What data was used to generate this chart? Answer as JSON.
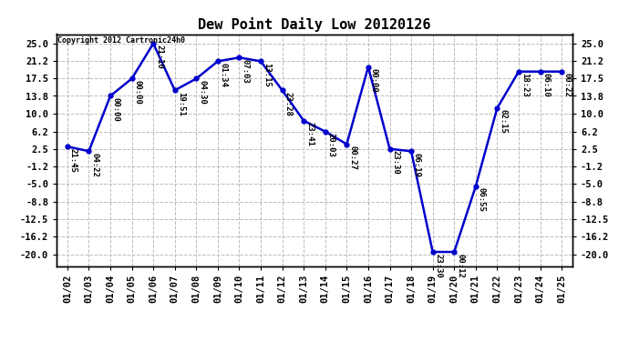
{
  "title": "Dew Point Daily Low 20120126",
  "copyright_text": "Copyright 2012 Cartronic24h0",
  "line_color": "#0000CC",
  "background_color": "#ffffff",
  "grid_color": "#bbbbbb",
  "dates": [
    "01/02",
    "01/03",
    "01/04",
    "01/05",
    "01/06",
    "01/07",
    "01/08",
    "01/09",
    "01/10",
    "01/11",
    "01/12",
    "01/13",
    "01/14",
    "01/15",
    "01/16",
    "01/17",
    "01/18",
    "01/19",
    "01/20",
    "01/21",
    "01/22",
    "01/23",
    "01/24",
    "01/25"
  ],
  "values": [
    3.0,
    2.0,
    13.8,
    17.5,
    25.0,
    15.0,
    17.5,
    21.2,
    22.0,
    21.2,
    15.0,
    8.5,
    6.2,
    3.5,
    20.0,
    2.5,
    2.0,
    -19.5,
    -19.5,
    -5.5,
    11.2,
    19.0,
    19.0,
    19.0
  ],
  "time_labels": [
    "21:45",
    "04:22",
    "00:00",
    "00:00",
    "21:10",
    "19:51",
    "04:30",
    "01:34",
    "07:03",
    "13:15",
    "23:28",
    "23:41",
    "20:03",
    "00:27",
    "00:00",
    "23:30",
    "06:19",
    "23:30",
    "00:12",
    "06:55",
    "02:15",
    "18:23",
    "06:10",
    "00:22"
  ],
  "yticks": [
    25.0,
    21.2,
    17.5,
    13.8,
    10.0,
    6.2,
    2.5,
    -1.2,
    -5.0,
    -8.8,
    -12.5,
    -16.2,
    -20.0
  ],
  "ylim": [
    -22.5,
    27.0
  ],
  "marker_size": 3.5,
  "line_width": 1.8,
  "label_fontsize": 6.5,
  "tick_fontsize": 7.5,
  "title_fontsize": 11
}
